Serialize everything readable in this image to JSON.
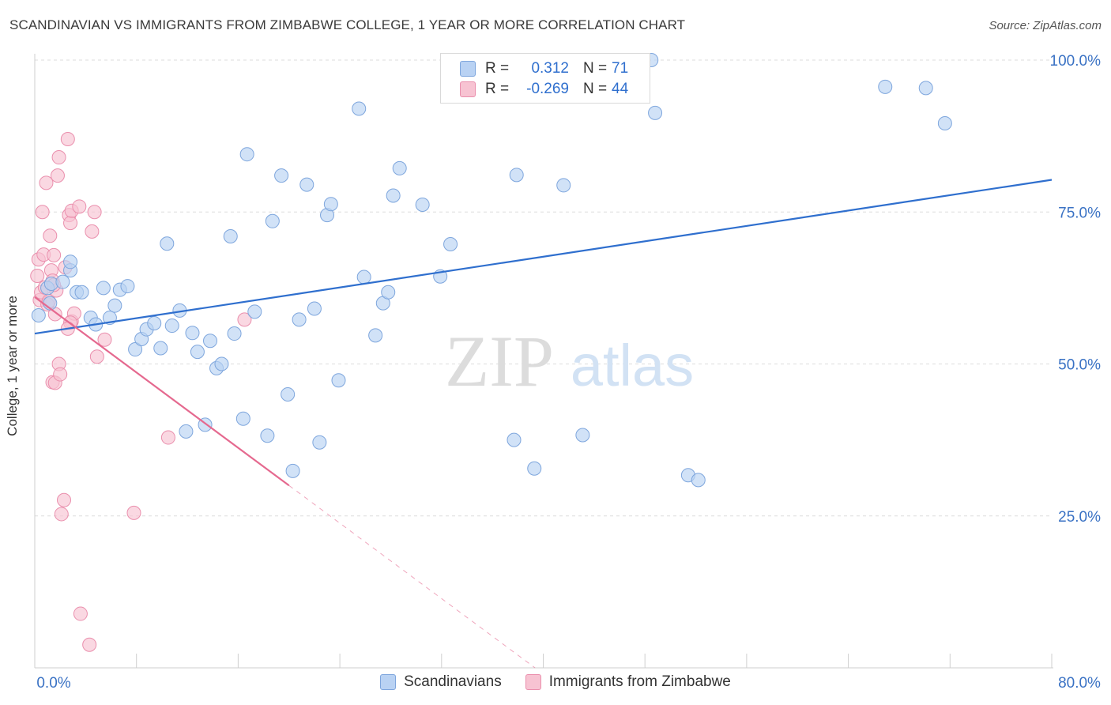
{
  "header": {
    "title": "SCANDINAVIAN VS IMMIGRANTS FROM ZIMBABWE COLLEGE, 1 YEAR OR MORE CORRELATION CHART",
    "source": "Source: ZipAtlas.com"
  },
  "legend": {
    "rows": [
      {
        "r_label": "R =",
        "r_value": "0.312",
        "n_label": "N =",
        "n_value": "71"
      },
      {
        "r_label": "R =",
        "r_value": "-0.269",
        "n_label": "N =",
        "n_value": "44"
      }
    ]
  },
  "bottom_legend": {
    "items": [
      {
        "label": "Scandinavians"
      },
      {
        "label": "Immigrants from Zimbabwe"
      }
    ]
  },
  "watermark": {
    "zip": "ZIP",
    "atlas": "atlas"
  },
  "colors": {
    "blue_fill": "#b9d2f3",
    "blue_stroke": "#7ea6dd",
    "blue_line": "#2f6fce",
    "pink_fill": "#f7c3d2",
    "pink_stroke": "#ea8fad",
    "pink_line": "#e5698f",
    "tick_label": "#3a72c4",
    "grid": "#dddddd"
  },
  "chart_data": {
    "type": "scatter",
    "title": "SCANDINAVIAN VS IMMIGRANTS FROM ZIMBABWE COLLEGE, 1 YEAR OR MORE CORRELATION CHART",
    "xlabel": "",
    "ylabel": "College, 1 year or more",
    "xlim": [
      0,
      80
    ],
    "ylim": [
      0,
      100
    ],
    "x_tick_labels": [
      "0.0%",
      "80.0%"
    ],
    "y_tick_values": [
      25,
      50,
      75,
      100
    ],
    "y_tick_labels": [
      "25.0%",
      "50.0%",
      "75.0%",
      "100.0%"
    ],
    "grid": true,
    "legend_position": "top-center",
    "series": [
      {
        "name": "Scandinavians",
        "R": 0.312,
        "N": 71,
        "trend": {
          "x0": 0,
          "y0": 55.0,
          "x1": 80,
          "y1": 80.3
        },
        "points": [
          [
            0.3,
            58.0
          ],
          [
            1.0,
            62.5
          ],
          [
            1.3,
            63.2
          ],
          [
            2.2,
            63.5
          ],
          [
            2.8,
            65.4
          ],
          [
            2.8,
            66.8
          ],
          [
            3.3,
            61.8
          ],
          [
            3.7,
            61.8
          ],
          [
            4.4,
            57.6
          ],
          [
            4.8,
            56.5
          ],
          [
            5.4,
            62.5
          ],
          [
            5.9,
            57.6
          ],
          [
            6.3,
            59.6
          ],
          [
            6.7,
            62.2
          ],
          [
            7.3,
            62.8
          ],
          [
            7.9,
            52.4
          ],
          [
            8.4,
            54.1
          ],
          [
            8.8,
            55.7
          ],
          [
            9.4,
            56.7
          ],
          [
            9.9,
            52.6
          ],
          [
            10.4,
            69.8
          ],
          [
            10.8,
            56.3
          ],
          [
            11.4,
            58.8
          ],
          [
            11.9,
            38.9
          ],
          [
            12.4,
            55.1
          ],
          [
            12.8,
            52.0
          ],
          [
            13.4,
            40.0
          ],
          [
            13.8,
            53.8
          ],
          [
            14.3,
            49.3
          ],
          [
            14.7,
            50.0
          ],
          [
            15.4,
            71.0
          ],
          [
            15.7,
            55.0
          ],
          [
            16.4,
            41.0
          ],
          [
            16.7,
            84.5
          ],
          [
            17.3,
            58.6
          ],
          [
            18.3,
            38.2
          ],
          [
            18.7,
            73.5
          ],
          [
            19.4,
            81.0
          ],
          [
            19.9,
            45.0
          ],
          [
            20.3,
            32.4
          ],
          [
            20.8,
            57.3
          ],
          [
            21.4,
            79.5
          ],
          [
            22.0,
            59.1
          ],
          [
            22.4,
            37.1
          ],
          [
            23.0,
            74.5
          ],
          [
            23.3,
            76.3
          ],
          [
            23.9,
            47.3
          ],
          [
            25.5,
            92.0
          ],
          [
            25.9,
            64.3
          ],
          [
            26.8,
            54.7
          ],
          [
            27.4,
            60.0
          ],
          [
            27.8,
            61.8
          ],
          [
            28.2,
            77.7
          ],
          [
            28.7,
            82.2
          ],
          [
            30.5,
            76.2
          ],
          [
            31.9,
            64.4
          ],
          [
            32.7,
            69.7
          ],
          [
            36.0,
            95.0
          ],
          [
            37.7,
            37.5
          ],
          [
            37.9,
            81.1
          ],
          [
            39.3,
            32.8
          ],
          [
            41.6,
            79.4
          ],
          [
            43.1,
            38.3
          ],
          [
            48.5,
            100.0
          ],
          [
            48.8,
            91.3
          ],
          [
            51.4,
            31.7
          ],
          [
            52.2,
            30.9
          ],
          [
            66.9,
            95.6
          ],
          [
            70.1,
            95.4
          ],
          [
            71.6,
            89.6
          ],
          [
            1.2,
            60.0
          ]
        ]
      },
      {
        "name": "Immigrants from Zimbabwe",
        "R": -0.269,
        "N": 44,
        "trend": {
          "x0": 0,
          "y0": 61.0,
          "x1": 20.0,
          "y1": 30.0
        },
        "points": [
          [
            0.2,
            64.5
          ],
          [
            0.3,
            67.2
          ],
          [
            0.4,
            60.5
          ],
          [
            0.5,
            61.8
          ],
          [
            0.6,
            75.0
          ],
          [
            0.7,
            68.0
          ],
          [
            0.8,
            62.6
          ],
          [
            0.9,
            79.8
          ],
          [
            1.0,
            59.8
          ],
          [
            1.1,
            60.3
          ],
          [
            1.2,
            71.1
          ],
          [
            1.3,
            65.4
          ],
          [
            1.4,
            63.7
          ],
          [
            1.5,
            67.9
          ],
          [
            1.6,
            58.2
          ],
          [
            1.7,
            62.1
          ],
          [
            1.4,
            47.0
          ],
          [
            1.6,
            46.9
          ],
          [
            1.8,
            81.0
          ],
          [
            1.9,
            84.0
          ],
          [
            1.9,
            50.0
          ],
          [
            2.0,
            48.3
          ],
          [
            2.1,
            25.3
          ],
          [
            2.3,
            27.6
          ],
          [
            2.4,
            65.9
          ],
          [
            2.6,
            87.0
          ],
          [
            2.9,
            57.0
          ],
          [
            3.1,
            58.3
          ],
          [
            2.8,
            56.8
          ],
          [
            2.6,
            55.8
          ],
          [
            2.7,
            74.5
          ],
          [
            2.8,
            73.2
          ],
          [
            2.9,
            75.2
          ],
          [
            3.5,
            75.9
          ],
          [
            3.6,
            8.9
          ],
          [
            4.3,
            3.8
          ],
          [
            4.5,
            71.8
          ],
          [
            4.7,
            75.0
          ],
          [
            4.9,
            51.2
          ],
          [
            5.5,
            54.0
          ],
          [
            7.8,
            25.5
          ],
          [
            10.5,
            37.9
          ],
          [
            16.5,
            57.3
          ],
          [
            1.5,
            63.0
          ]
        ]
      }
    ]
  }
}
